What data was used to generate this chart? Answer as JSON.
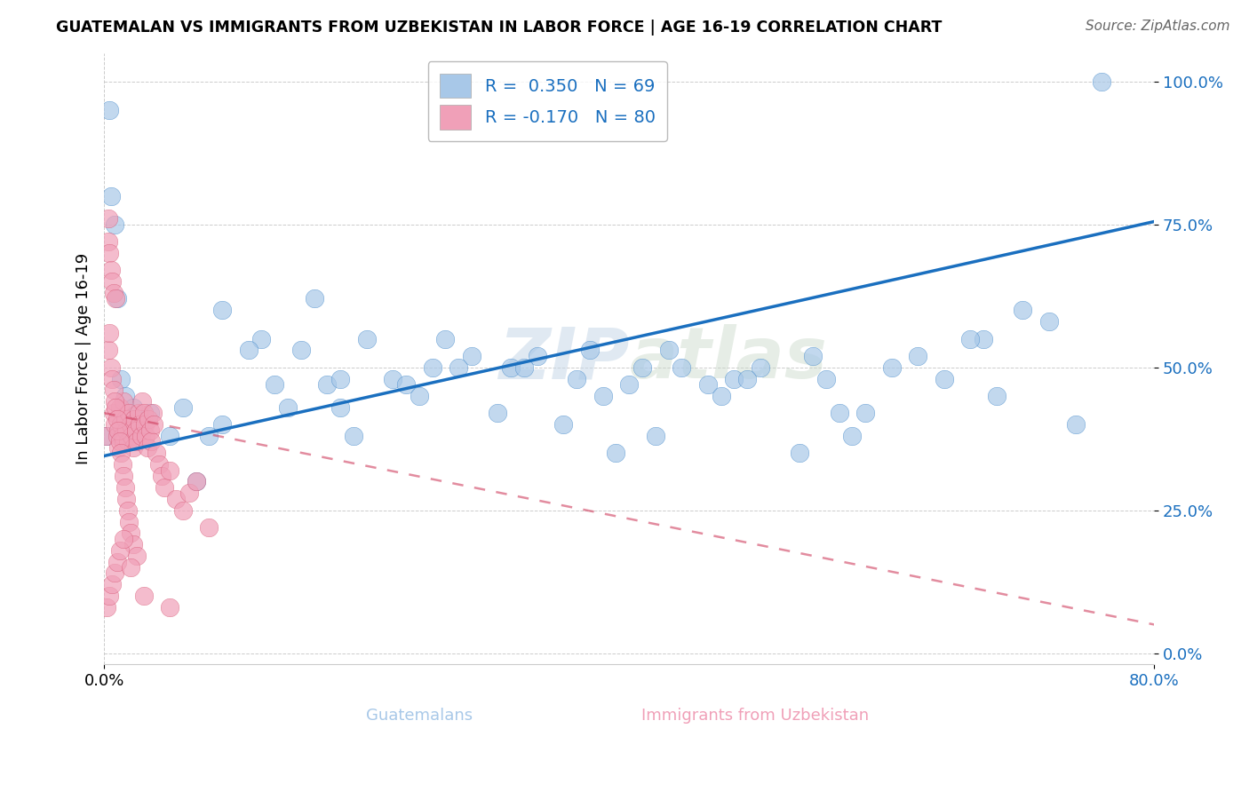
{
  "title": "GUATEMALAN VS IMMIGRANTS FROM UZBEKISTAN IN LABOR FORCE | AGE 16-19 CORRELATION CHART",
  "source": "Source: ZipAtlas.com",
  "xlabel_label": "Guatemalans",
  "xlabel2_label": "Immigrants from Uzbekistan",
  "ylabel": "In Labor Force | Age 16-19",
  "blue_R": 0.35,
  "blue_N": 69,
  "pink_R": -0.17,
  "pink_N": 80,
  "blue_color": "#a8c8e8",
  "pink_color": "#f0a0b8",
  "blue_line_color": "#1a6fbf",
  "pink_line_color": "#d04060",
  "watermark": "ZIPatlas",
  "xlim": [
    0.0,
    0.8
  ],
  "ylim": [
    -0.02,
    1.05
  ],
  "yticks": [
    0.0,
    0.25,
    0.5,
    0.75,
    1.0
  ],
  "ytick_labels": [
    "0.0%",
    "25.0%",
    "50.0%",
    "75.0%",
    "100.0%"
  ],
  "xtick_positions": [
    0.0,
    0.8
  ],
  "xtick_labels": [
    "0.0%",
    "80.0%"
  ],
  "blue_trend_x": [
    0.0,
    0.8
  ],
  "blue_trend_y": [
    0.345,
    0.755
  ],
  "pink_trend_x": [
    0.0,
    0.8
  ],
  "pink_trend_y": [
    0.42,
    0.05
  ],
  "blue_x": [
    0.004,
    0.28,
    0.76,
    0.17,
    0.54,
    0.005,
    0.12,
    0.38,
    0.22,
    0.46,
    0.008,
    0.19,
    0.33,
    0.6,
    0.41,
    0.01,
    0.25,
    0.5,
    0.67,
    0.15,
    0.013,
    0.3,
    0.44,
    0.58,
    0.35,
    0.016,
    0.2,
    0.55,
    0.7,
    0.48,
    0.022,
    0.27,
    0.62,
    0.37,
    0.53,
    0.028,
    0.42,
    0.66,
    0.31,
    0.09,
    0.035,
    0.47,
    0.72,
    0.18,
    0.26,
    0.05,
    0.56,
    0.64,
    0.14,
    0.4,
    0.07,
    0.32,
    0.23,
    0.49,
    0.11,
    0.09,
    0.36,
    0.16,
    0.43,
    0.06,
    0.13,
    0.24,
    0.57,
    0.68,
    0.08,
    0.18,
    0.39,
    0.002,
    0.74
  ],
  "blue_y": [
    0.95,
    0.52,
    1.0,
    0.47,
    0.52,
    0.8,
    0.55,
    0.45,
    0.48,
    0.47,
    0.75,
    0.38,
    0.52,
    0.5,
    0.5,
    0.62,
    0.5,
    0.5,
    0.55,
    0.53,
    0.48,
    0.42,
    0.5,
    0.42,
    0.4,
    0.45,
    0.55,
    0.48,
    0.6,
    0.48,
    0.43,
    0.5,
    0.52,
    0.53,
    0.35,
    0.4,
    0.38,
    0.55,
    0.5,
    0.6,
    0.42,
    0.45,
    0.58,
    0.48,
    0.55,
    0.38,
    0.42,
    0.48,
    0.43,
    0.47,
    0.3,
    0.5,
    0.47,
    0.48,
    0.53,
    0.4,
    0.48,
    0.62,
    0.53,
    0.43,
    0.47,
    0.45,
    0.38,
    0.45,
    0.38,
    0.43,
    0.35,
    0.38,
    0.4
  ],
  "pink_x": [
    0.001,
    0.003,
    0.003,
    0.004,
    0.005,
    0.006,
    0.007,
    0.007,
    0.008,
    0.009,
    0.01,
    0.011,
    0.012,
    0.013,
    0.014,
    0.015,
    0.015,
    0.016,
    0.017,
    0.018,
    0.019,
    0.02,
    0.021,
    0.022,
    0.023,
    0.024,
    0.025,
    0.026,
    0.027,
    0.028,
    0.029,
    0.03,
    0.031,
    0.032,
    0.033,
    0.034,
    0.035,
    0.036,
    0.037,
    0.038,
    0.04,
    0.042,
    0.044,
    0.046,
    0.05,
    0.055,
    0.06,
    0.065,
    0.07,
    0.08,
    0.003,
    0.004,
    0.005,
    0.006,
    0.007,
    0.008,
    0.009,
    0.01,
    0.011,
    0.012,
    0.013,
    0.014,
    0.015,
    0.016,
    0.017,
    0.018,
    0.019,
    0.02,
    0.022,
    0.025,
    0.002,
    0.004,
    0.006,
    0.008,
    0.01,
    0.012,
    0.015,
    0.02,
    0.03,
    0.05
  ],
  "pink_y": [
    0.38,
    0.76,
    0.72,
    0.7,
    0.67,
    0.65,
    0.63,
    0.42,
    0.4,
    0.62,
    0.38,
    0.36,
    0.43,
    0.4,
    0.38,
    0.37,
    0.44,
    0.41,
    0.39,
    0.37,
    0.42,
    0.4,
    0.38,
    0.36,
    0.41,
    0.39,
    0.37,
    0.42,
    0.4,
    0.38,
    0.44,
    0.42,
    0.4,
    0.38,
    0.36,
    0.41,
    0.39,
    0.37,
    0.42,
    0.4,
    0.35,
    0.33,
    0.31,
    0.29,
    0.32,
    0.27,
    0.25,
    0.28,
    0.3,
    0.22,
    0.53,
    0.56,
    0.5,
    0.48,
    0.46,
    0.44,
    0.43,
    0.41,
    0.39,
    0.37,
    0.35,
    0.33,
    0.31,
    0.29,
    0.27,
    0.25,
    0.23,
    0.21,
    0.19,
    0.17,
    0.08,
    0.1,
    0.12,
    0.14,
    0.16,
    0.18,
    0.2,
    0.15,
    0.1,
    0.08
  ]
}
